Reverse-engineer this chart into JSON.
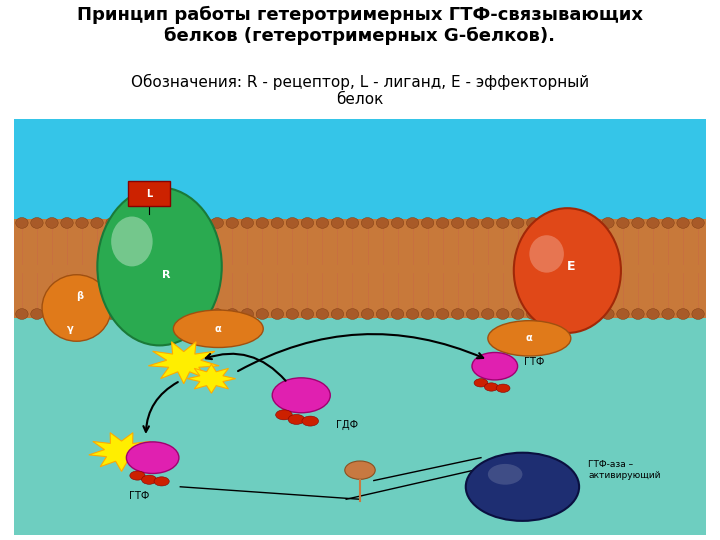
{
  "title_line1": "Принцип работы гетеротримерных ГТФ-связывающих",
  "title_line2": "белков (гетеротримерных G-белков).",
  "subtitle": "Обозначения: R - рецептор, L - лиганд, E - эффекторный\nбелок",
  "bg_color": "#ffffff",
  "sky_color": "#35c5e8",
  "cytoplasm_color": "#6ecec0",
  "membrane_fill": "#c8793a",
  "membrane_head_color": "#a85a28",
  "receptor_green": "#2aaa50",
  "effector_orange": "#dd4010",
  "alpha_orange": "#e07a1a",
  "ligand_red": "#cc2200",
  "magenta_circle": "#e020b0",
  "red_dot": "#cc2000",
  "yellow_star": "#ffdd00",
  "navy_blue": "#1e2e72",
  "title_fontsize": 13,
  "subtitle_fontsize": 11
}
